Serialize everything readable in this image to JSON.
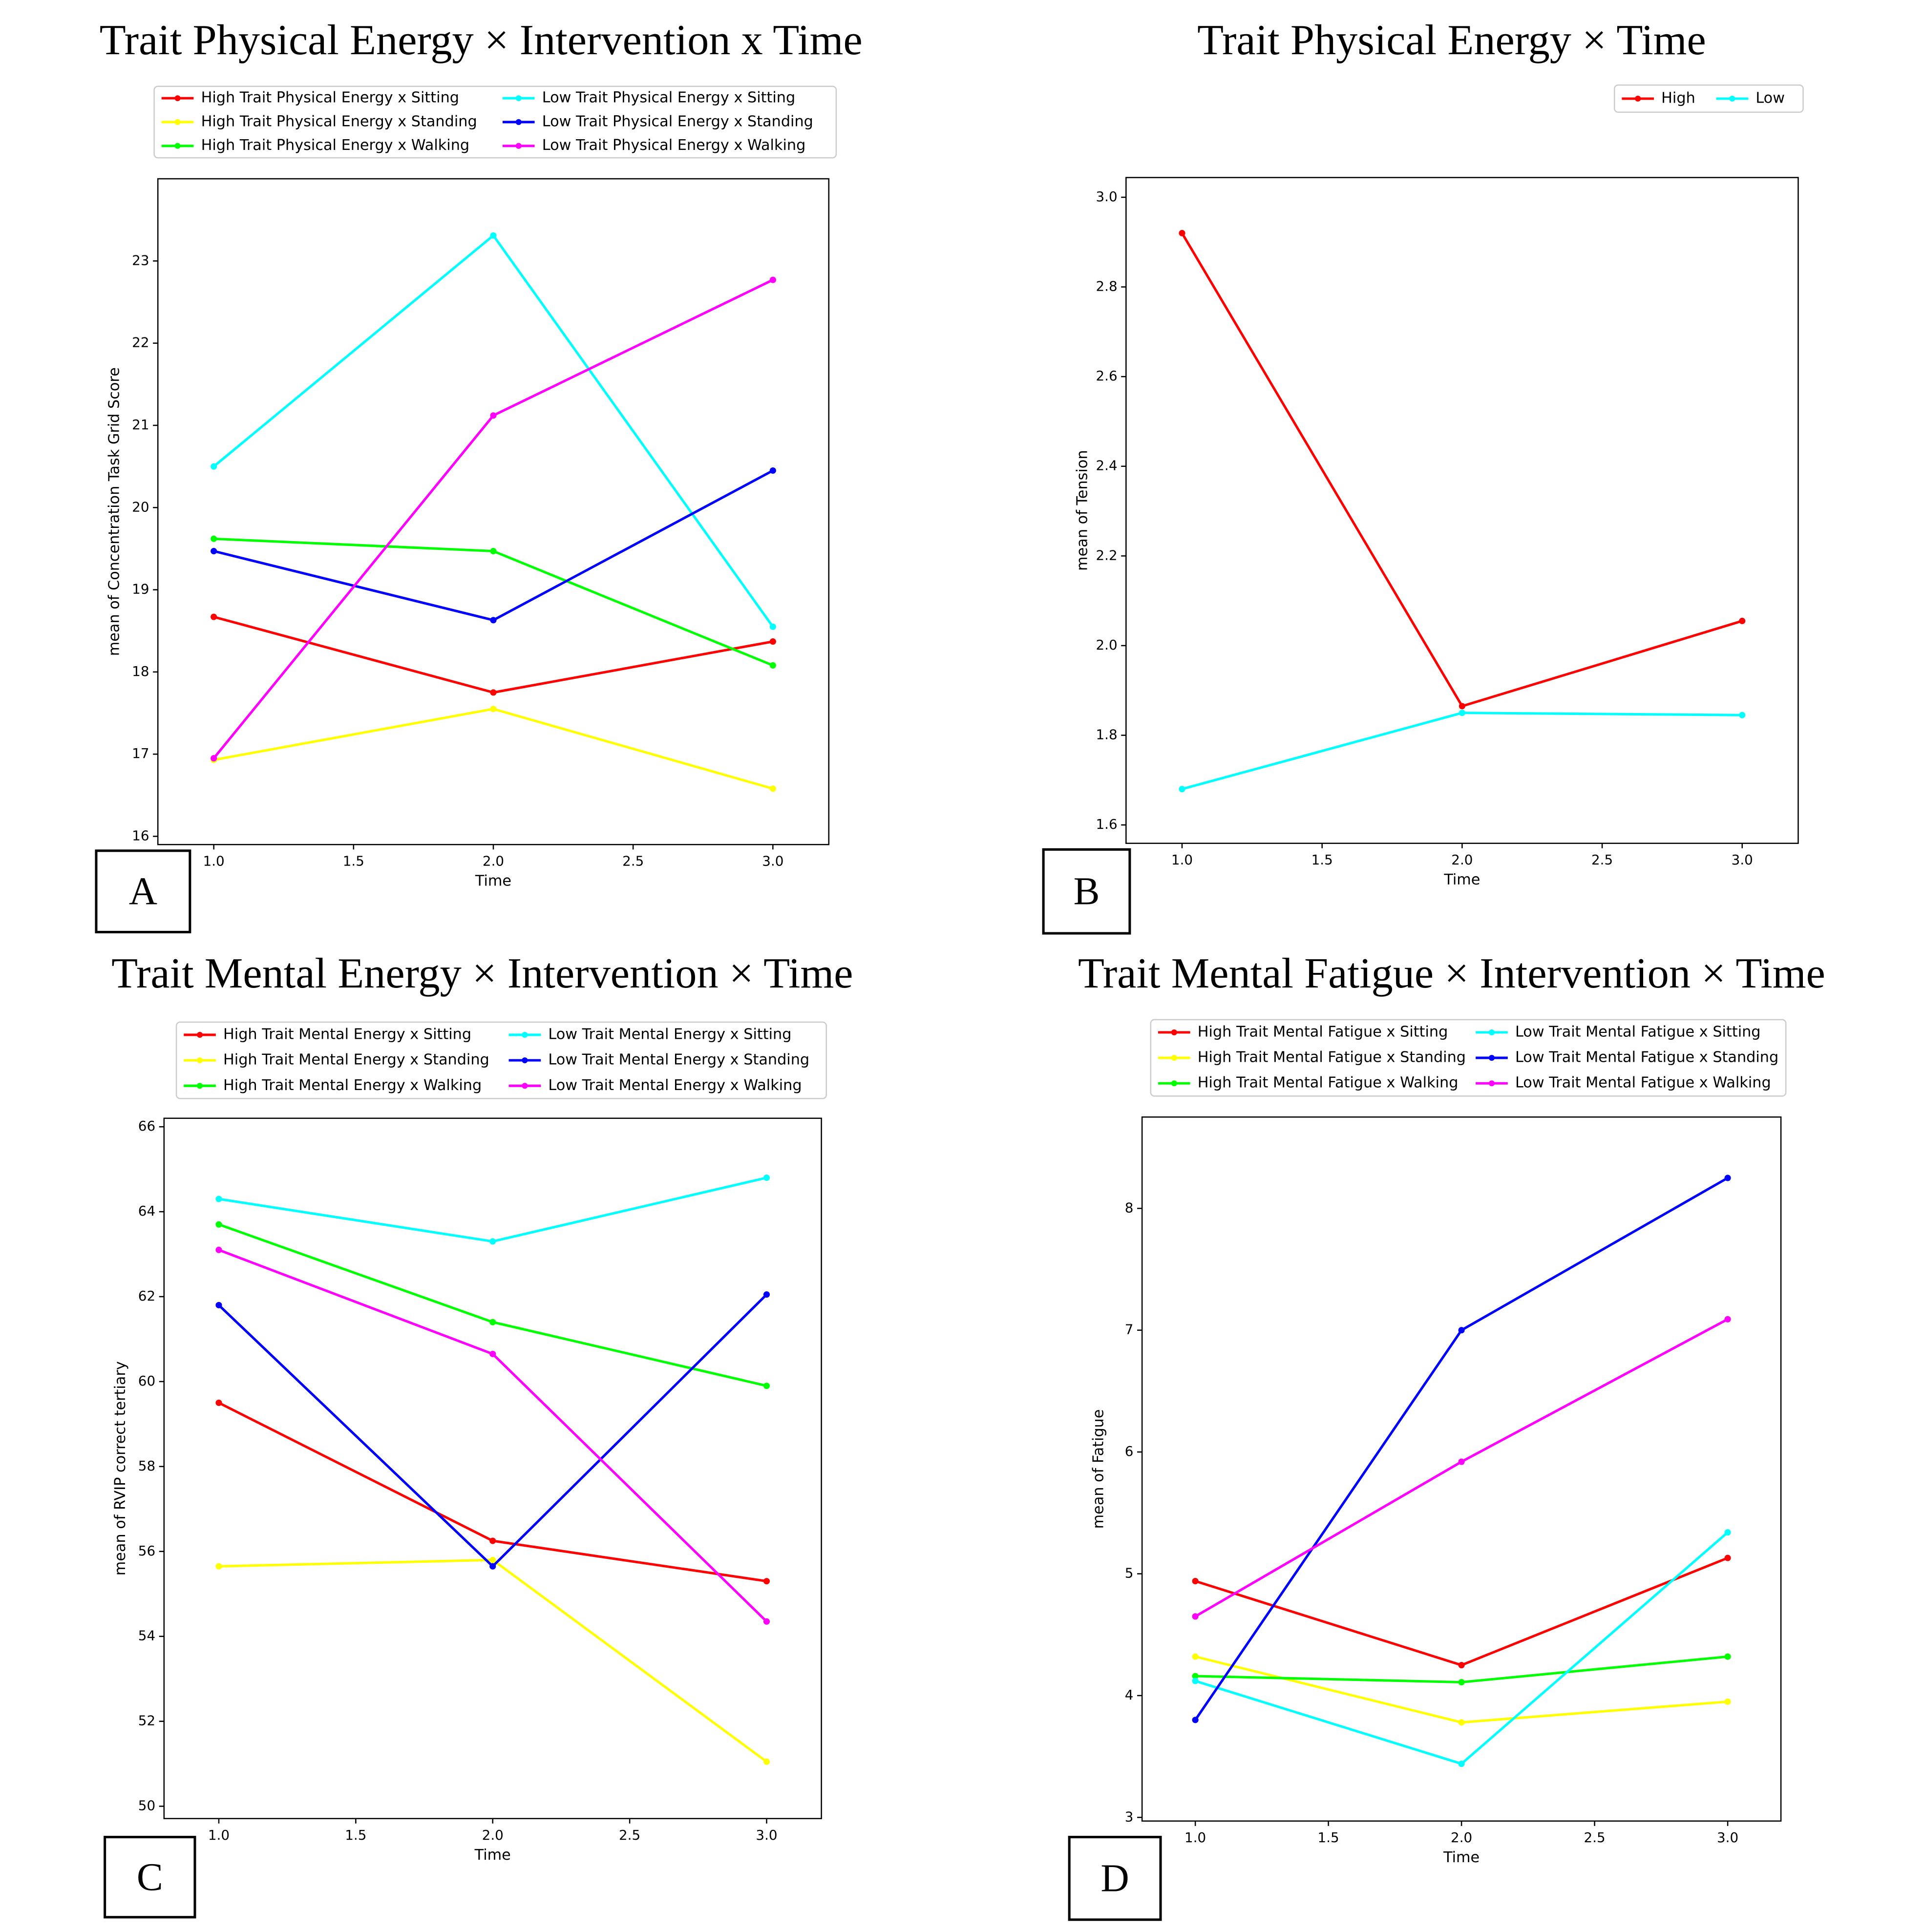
{
  "chart_data": [
    {
      "type": "line",
      "title": "Trait Physical Energy × Intervention x Time",
      "panel": "A",
      "xlabel": "Time",
      "ylabel": "mean of Concentration Task Grid Score",
      "x": [
        1,
        2,
        3
      ],
      "xlim": [
        0.8,
        3.2
      ],
      "xticks": [
        {
          "value": 1,
          "label": "1.0"
        },
        1.5,
        {
          "value": 2,
          "label": "2.0"
        },
        2.5,
        {
          "value": 3,
          "label": "3.0"
        }
      ],
      "ylim": [
        15.9,
        24.0
      ],
      "yticks": [
        16,
        17,
        18,
        19,
        20,
        21,
        22,
        23
      ],
      "series": [
        {
          "name": "High Trait Physical Energy x Sitting",
          "color": "#ff0000",
          "values": [
            18.67,
            17.75,
            18.37
          ]
        },
        {
          "name": "High Trait Physical Energy x Standing",
          "color": "#ffff00",
          "values": [
            16.93,
            17.55,
            16.58
          ]
        },
        {
          "name": "High Trait Physical Energy x Walking",
          "color": "#00ff00",
          "values": [
            19.62,
            19.47,
            18.08
          ]
        },
        {
          "name": "Low Trait Physical Energy x Sitting",
          "color": "#00ffff",
          "values": [
            20.5,
            23.31,
            18.55
          ]
        },
        {
          "name": "Low Trait Physical Energy x Standing",
          "color": "#0000ff",
          "values": [
            19.47,
            18.63,
            20.45
          ]
        },
        {
          "name": "Low Trait Physical Energy x Walking",
          "color": "#ff00ff",
          "values": [
            16.95,
            21.12,
            22.77
          ]
        }
      ]
    },
    {
      "type": "line",
      "title": "Trait Physical Energy × Time",
      "panel": "B",
      "xlabel": "Time",
      "ylabel": "mean of Tension",
      "x": [
        1,
        2,
        3
      ],
      "xlim": [
        0.8,
        3.2
      ],
      "xticks": [
        {
          "value": 1,
          "label": "1.0"
        },
        1.5,
        {
          "value": 2,
          "label": "2.0"
        },
        2.5,
        {
          "value": 3,
          "label": "3.0"
        }
      ],
      "ylim": [
        1.559,
        3.044
      ],
      "yticks": [
        1.6,
        1.8,
        {
          "value": 2,
          "label": "2.0"
        },
        2.2,
        2.4,
        2.6,
        2.8,
        {
          "value": 3,
          "label": "3.0"
        }
      ],
      "series": [
        {
          "name": "High",
          "color": "#ff0000",
          "values": [
            2.92,
            1.865,
            2.055
          ]
        },
        {
          "name": "Low",
          "color": "#00ffff",
          "values": [
            1.68,
            1.85,
            1.845
          ]
        }
      ]
    },
    {
      "type": "line",
      "title": "Trait Mental Energy × Intervention × Time",
      "panel": "C",
      "xlabel": "Time",
      "ylabel": "mean of RVIP correct tertiary",
      "x": [
        1,
        2,
        3
      ],
      "xlim": [
        0.8,
        3.2
      ],
      "xticks": [
        {
          "value": 1,
          "label": "1.0"
        },
        1.5,
        {
          "value": 2,
          "label": "2.0"
        },
        2.5,
        {
          "value": 3,
          "label": "3.0"
        }
      ],
      "ylim": [
        49.71,
        66.2
      ],
      "yticks": [
        50,
        52,
        54,
        56,
        58,
        60,
        62,
        64,
        66
      ],
      "series": [
        {
          "name": "High Trait Mental Energy x Sitting",
          "color": "#ff0000",
          "values": [
            59.5,
            56.25,
            55.3
          ]
        },
        {
          "name": "High Trait Mental Energy x Standing",
          "color": "#ffff00",
          "values": [
            55.65,
            55.8,
            51.05
          ]
        },
        {
          "name": "High Trait Mental Energy x Walking",
          "color": "#00ff00",
          "values": [
            63.7,
            61.4,
            59.9
          ]
        },
        {
          "name": "Low Trait Mental Energy x Sitting",
          "color": "#00ffff",
          "values": [
            64.3,
            63.3,
            64.8
          ]
        },
        {
          "name": "Low Trait Mental Energy x Standing",
          "color": "#0000ff",
          "values": [
            61.8,
            55.65,
            62.05
          ]
        },
        {
          "name": "Low Trait Mental Energy x Walking",
          "color": "#ff00ff",
          "values": [
            63.1,
            60.65,
            54.35
          ]
        }
      ]
    },
    {
      "type": "line",
      "title": "Trait Mental Fatigue × Intervention × Time",
      "panel": "D",
      "xlabel": "Time",
      "ylabel": "mean of Fatigue",
      "x": [
        1,
        2,
        3
      ],
      "xlim": [
        0.8,
        3.2
      ],
      "xticks": [
        {
          "value": 1,
          "label": "1.0"
        },
        1.5,
        {
          "value": 2,
          "label": "2.0"
        },
        2.5,
        {
          "value": 3,
          "label": "3.0"
        }
      ],
      "ylim": [
        2.97,
        8.75
      ],
      "yticks": [
        3,
        4,
        5,
        6,
        7,
        8
      ],
      "series": [
        {
          "name": "High Trait Mental Fatigue x Sitting",
          "color": "#ff0000",
          "values": [
            4.94,
            4.25,
            5.13
          ]
        },
        {
          "name": "High Trait Mental Fatigue x Standing",
          "color": "#ffff00",
          "values": [
            4.32,
            3.78,
            3.95
          ]
        },
        {
          "name": "High Trait Mental Fatigue x Walking",
          "color": "#00ff00",
          "values": [
            4.16,
            4.11,
            4.32
          ]
        },
        {
          "name": "Low Trait Mental Fatigue x Sitting",
          "color": "#00ffff",
          "values": [
            4.12,
            3.44,
            5.34
          ]
        },
        {
          "name": "Low Trait Mental Fatigue x Standing",
          "color": "#0000ff",
          "values": [
            3.8,
            7.0,
            8.25
          ]
        },
        {
          "name": "Low Trait Mental Fatigue x Walking",
          "color": "#ff00ff",
          "values": [
            4.65,
            5.92,
            7.09
          ]
        }
      ]
    }
  ]
}
